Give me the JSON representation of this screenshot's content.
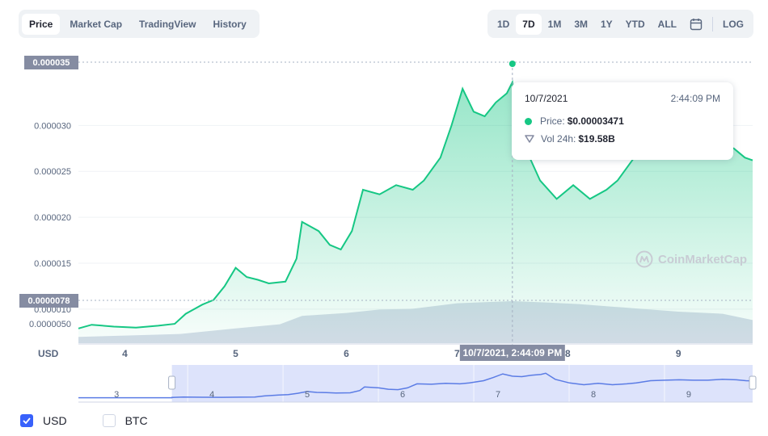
{
  "tabs": [
    {
      "label": "Price",
      "active": true
    },
    {
      "label": "Market Cap",
      "active": false
    },
    {
      "label": "TradingView",
      "active": false
    },
    {
      "label": "History",
      "active": false
    }
  ],
  "ranges": [
    {
      "label": "1D",
      "active": false
    },
    {
      "label": "7D",
      "active": true
    },
    {
      "label": "1M",
      "active": false
    },
    {
      "label": "3M",
      "active": false
    },
    {
      "label": "1Y",
      "active": false
    },
    {
      "label": "YTD",
      "active": false
    },
    {
      "label": "ALL",
      "active": false
    }
  ],
  "calendar_icon": "calendar-icon",
  "log_label": "LOG",
  "tooltip": {
    "date": "10/7/2021",
    "time": "2:44:09 PM",
    "price_label": "Price:",
    "price_value": "$0.00003471",
    "volume_label": "Vol 24h:",
    "volume_value": "$19.58B"
  },
  "watermark": "CoinMarketCap",
  "currency_options": [
    {
      "label": "USD",
      "checked": true
    },
    {
      "label": "BTC",
      "checked": false
    }
  ],
  "colors": {
    "price_line": "#16c784",
    "volume": "#cfd6e4",
    "nav_fill": "#dde3fb",
    "nav_line": "#5b7ce5",
    "badge": "#858ca2",
    "accent": "#3861fb"
  },
  "chart_data": {
    "type": "line",
    "y_unit": "USD",
    "x_ticks": [
      "4",
      "5",
      "6",
      "7",
      "8",
      "9"
    ],
    "x_tick_values": [
      4,
      5,
      6,
      7,
      8,
      9
    ],
    "x_range": [
      3.58,
      9.67
    ],
    "y_ticks": [
      "0.000010",
      "0.000015",
      "0.000020",
      "0.000025",
      "0.000030"
    ],
    "y_tick_values": [
      1e-05,
      1.5e-05,
      2e-05,
      2.5e-05,
      3e-05
    ],
    "y_range": [
      6.3e-06,
      3.68e-05
    ],
    "volume_axis_tick": "0.0000050",
    "price_series": [
      [
        3.58,
        7.9e-06
      ],
      [
        3.7,
        8.3e-06
      ],
      [
        3.9,
        8.1e-06
      ],
      [
        4.1,
        8e-06
      ],
      [
        4.3,
        8.2e-06
      ],
      [
        4.45,
        8.4e-06
      ],
      [
        4.55,
        9.5e-06
      ],
      [
        4.7,
        1.05e-05
      ],
      [
        4.8,
        1.1e-05
      ],
      [
        4.9,
        1.25e-05
      ],
      [
        5.0,
        1.45e-05
      ],
      [
        5.1,
        1.35e-05
      ],
      [
        5.2,
        1.32e-05
      ],
      [
        5.3,
        1.28e-05
      ],
      [
        5.45,
        1.3e-05
      ],
      [
        5.55,
        1.55e-05
      ],
      [
        5.6,
        1.95e-05
      ],
      [
        5.75,
        1.85e-05
      ],
      [
        5.85,
        1.7e-05
      ],
      [
        5.95,
        1.65e-05
      ],
      [
        6.05,
        1.85e-05
      ],
      [
        6.15,
        2.3e-05
      ],
      [
        6.3,
        2.25e-05
      ],
      [
        6.45,
        2.35e-05
      ],
      [
        6.6,
        2.3e-05
      ],
      [
        6.7,
        2.4e-05
      ],
      [
        6.85,
        2.65e-05
      ],
      [
        6.95,
        3e-05
      ],
      [
        7.05,
        3.4e-05
      ],
      [
        7.15,
        3.15e-05
      ],
      [
        7.25,
        3.1e-05
      ],
      [
        7.35,
        3.25e-05
      ],
      [
        7.45,
        3.35e-05
      ],
      [
        7.5,
        3.47e-05
      ],
      [
        7.6,
        2.8e-05
      ],
      [
        7.75,
        2.4e-05
      ],
      [
        7.9,
        2.2e-05
      ],
      [
        8.05,
        2.35e-05
      ],
      [
        8.2,
        2.2e-05
      ],
      [
        8.35,
        2.3e-05
      ],
      [
        8.45,
        2.4e-05
      ],
      [
        8.6,
        2.65e-05
      ],
      [
        8.75,
        2.7e-05
      ],
      [
        8.9,
        2.75e-05
      ],
      [
        9.05,
        2.7e-05
      ],
      [
        9.2,
        2.7e-05
      ],
      [
        9.35,
        2.8e-05
      ],
      [
        9.5,
        2.75e-05
      ],
      [
        9.6,
        2.65e-05
      ],
      [
        9.67,
        2.62e-05
      ]
    ],
    "volume_series": [
      [
        3.58,
        0.15
      ],
      [
        4.0,
        0.18
      ],
      [
        4.5,
        0.22
      ],
      [
        5.0,
        0.35
      ],
      [
        5.4,
        0.45
      ],
      [
        5.6,
        0.65
      ],
      [
        6.0,
        0.72
      ],
      [
        6.3,
        0.8
      ],
      [
        6.6,
        0.82
      ],
      [
        7.0,
        0.95
      ],
      [
        7.3,
        0.98
      ],
      [
        7.5,
        1.0
      ],
      [
        7.8,
        0.97
      ],
      [
        8.1,
        0.93
      ],
      [
        8.5,
        0.85
      ],
      [
        9.0,
        0.75
      ],
      [
        9.4,
        0.7
      ],
      [
        9.67,
        0.55
      ]
    ],
    "open_price": "0.0000078",
    "high_price": "0.000035",
    "crosshair_x": 7.5,
    "crosshair_label": "10/7/2021, 2:44:09 PM",
    "navigator_ticks": [
      "3",
      "4",
      "5",
      "6",
      "7",
      "8",
      "9"
    ],
    "navigator_tick_values": [
      3,
      4,
      5,
      6,
      7,
      8,
      9
    ],
    "navigator_range": [
      2.6,
      9.67
    ],
    "navigator_selection": [
      3.58,
      9.67
    ]
  }
}
